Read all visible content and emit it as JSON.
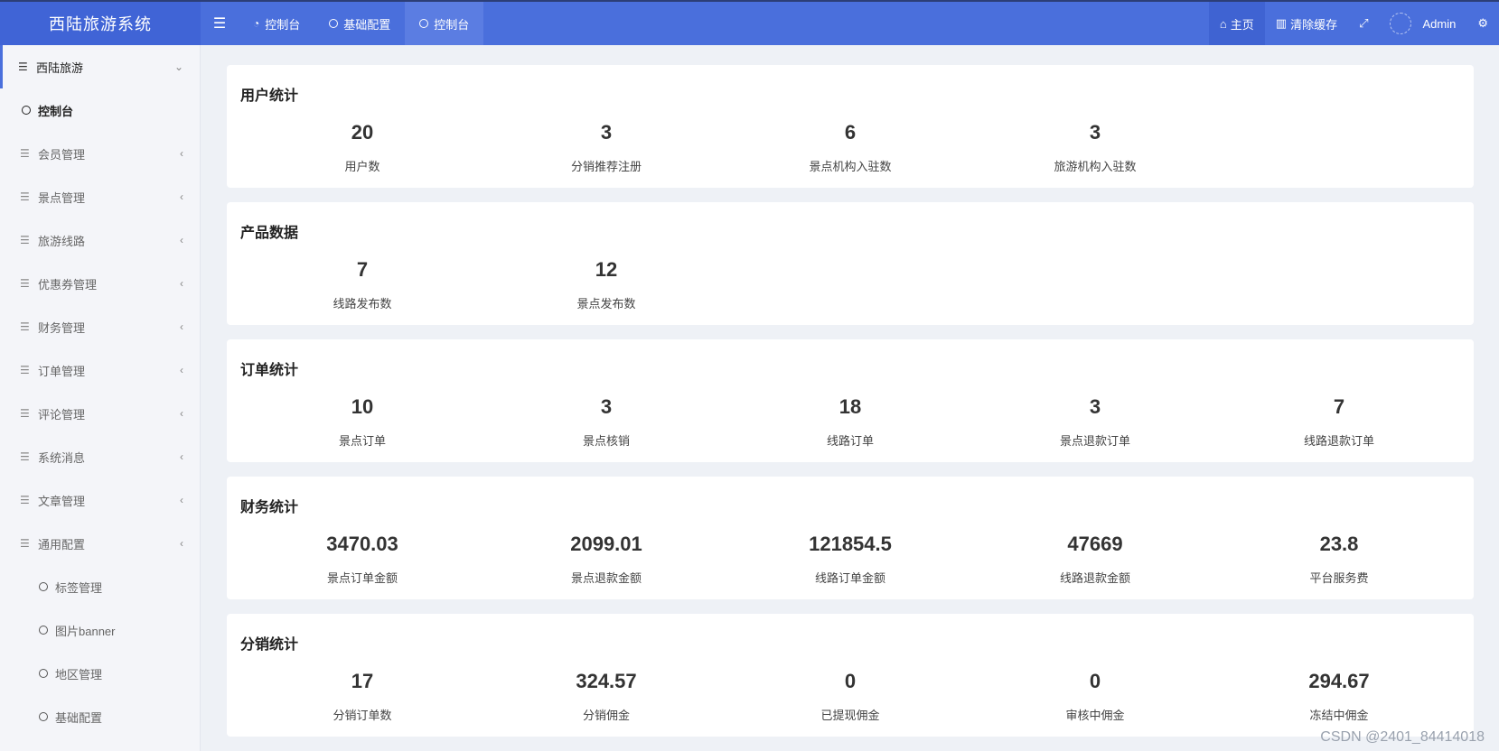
{
  "app": {
    "title": "西陆旅游系统",
    "user": "Admin"
  },
  "topnav": {
    "tabs": [
      {
        "label": "控制台",
        "icon": "dashboard-icon"
      },
      {
        "label": "基础配置",
        "icon": "circle-icon"
      },
      {
        "label": "控制台",
        "icon": "circle-icon"
      }
    ],
    "right": {
      "home": "主页",
      "clear_cache": "清除缓存"
    }
  },
  "sidebar": {
    "group": "西陆旅游",
    "active": "控制台",
    "items": [
      "会员管理",
      "景点管理",
      "旅游线路",
      "优惠券管理",
      "财务管理",
      "订单管理",
      "评论管理",
      "系统消息",
      "文章管理",
      "通用配置"
    ],
    "subitems": [
      "标签管理",
      "图片banner",
      "地区管理",
      "基础配置"
    ]
  },
  "cards": [
    {
      "title": "用户统计",
      "stats": [
        {
          "value": "20",
          "label": "用户数"
        },
        {
          "value": "3",
          "label": "分销推荐注册"
        },
        {
          "value": "6",
          "label": "景点机构入驻数"
        },
        {
          "value": "3",
          "label": "旅游机构入驻数"
        }
      ]
    },
    {
      "title": "产品数据",
      "stats": [
        {
          "value": "7",
          "label": "线路发布数"
        },
        {
          "value": "12",
          "label": "景点发布数"
        }
      ]
    },
    {
      "title": "订单统计",
      "stats": [
        {
          "value": "10",
          "label": "景点订单"
        },
        {
          "value": "3",
          "label": "景点核销"
        },
        {
          "value": "18",
          "label": "线路订单"
        },
        {
          "value": "3",
          "label": "景点退款订单"
        },
        {
          "value": "7",
          "label": "线路退款订单"
        }
      ]
    },
    {
      "title": "财务统计",
      "stats": [
        {
          "value": "3470.03",
          "label": "景点订单金额"
        },
        {
          "value": "2099.01",
          "label": "景点退款金额"
        },
        {
          "value": "121854.5",
          "label": "线路订单金额"
        },
        {
          "value": "47669",
          "label": "线路退款金额"
        },
        {
          "value": "23.8",
          "label": "平台服务费"
        }
      ]
    },
    {
      "title": "分销统计",
      "stats": [
        {
          "value": "17",
          "label": "分销订单数"
        },
        {
          "value": "324.57",
          "label": "分销佣金"
        },
        {
          "value": "0",
          "label": "已提现佣金"
        },
        {
          "value": "0",
          "label": "审核中佣金"
        },
        {
          "value": "294.67",
          "label": "冻结中佣金"
        }
      ]
    }
  ],
  "watermark": "CSDN @2401_84414018",
  "colors": {
    "topbar": "#4a6fdc",
    "sidebar_bg": "#f4f5f9",
    "page_bg": "#eef1f6"
  }
}
